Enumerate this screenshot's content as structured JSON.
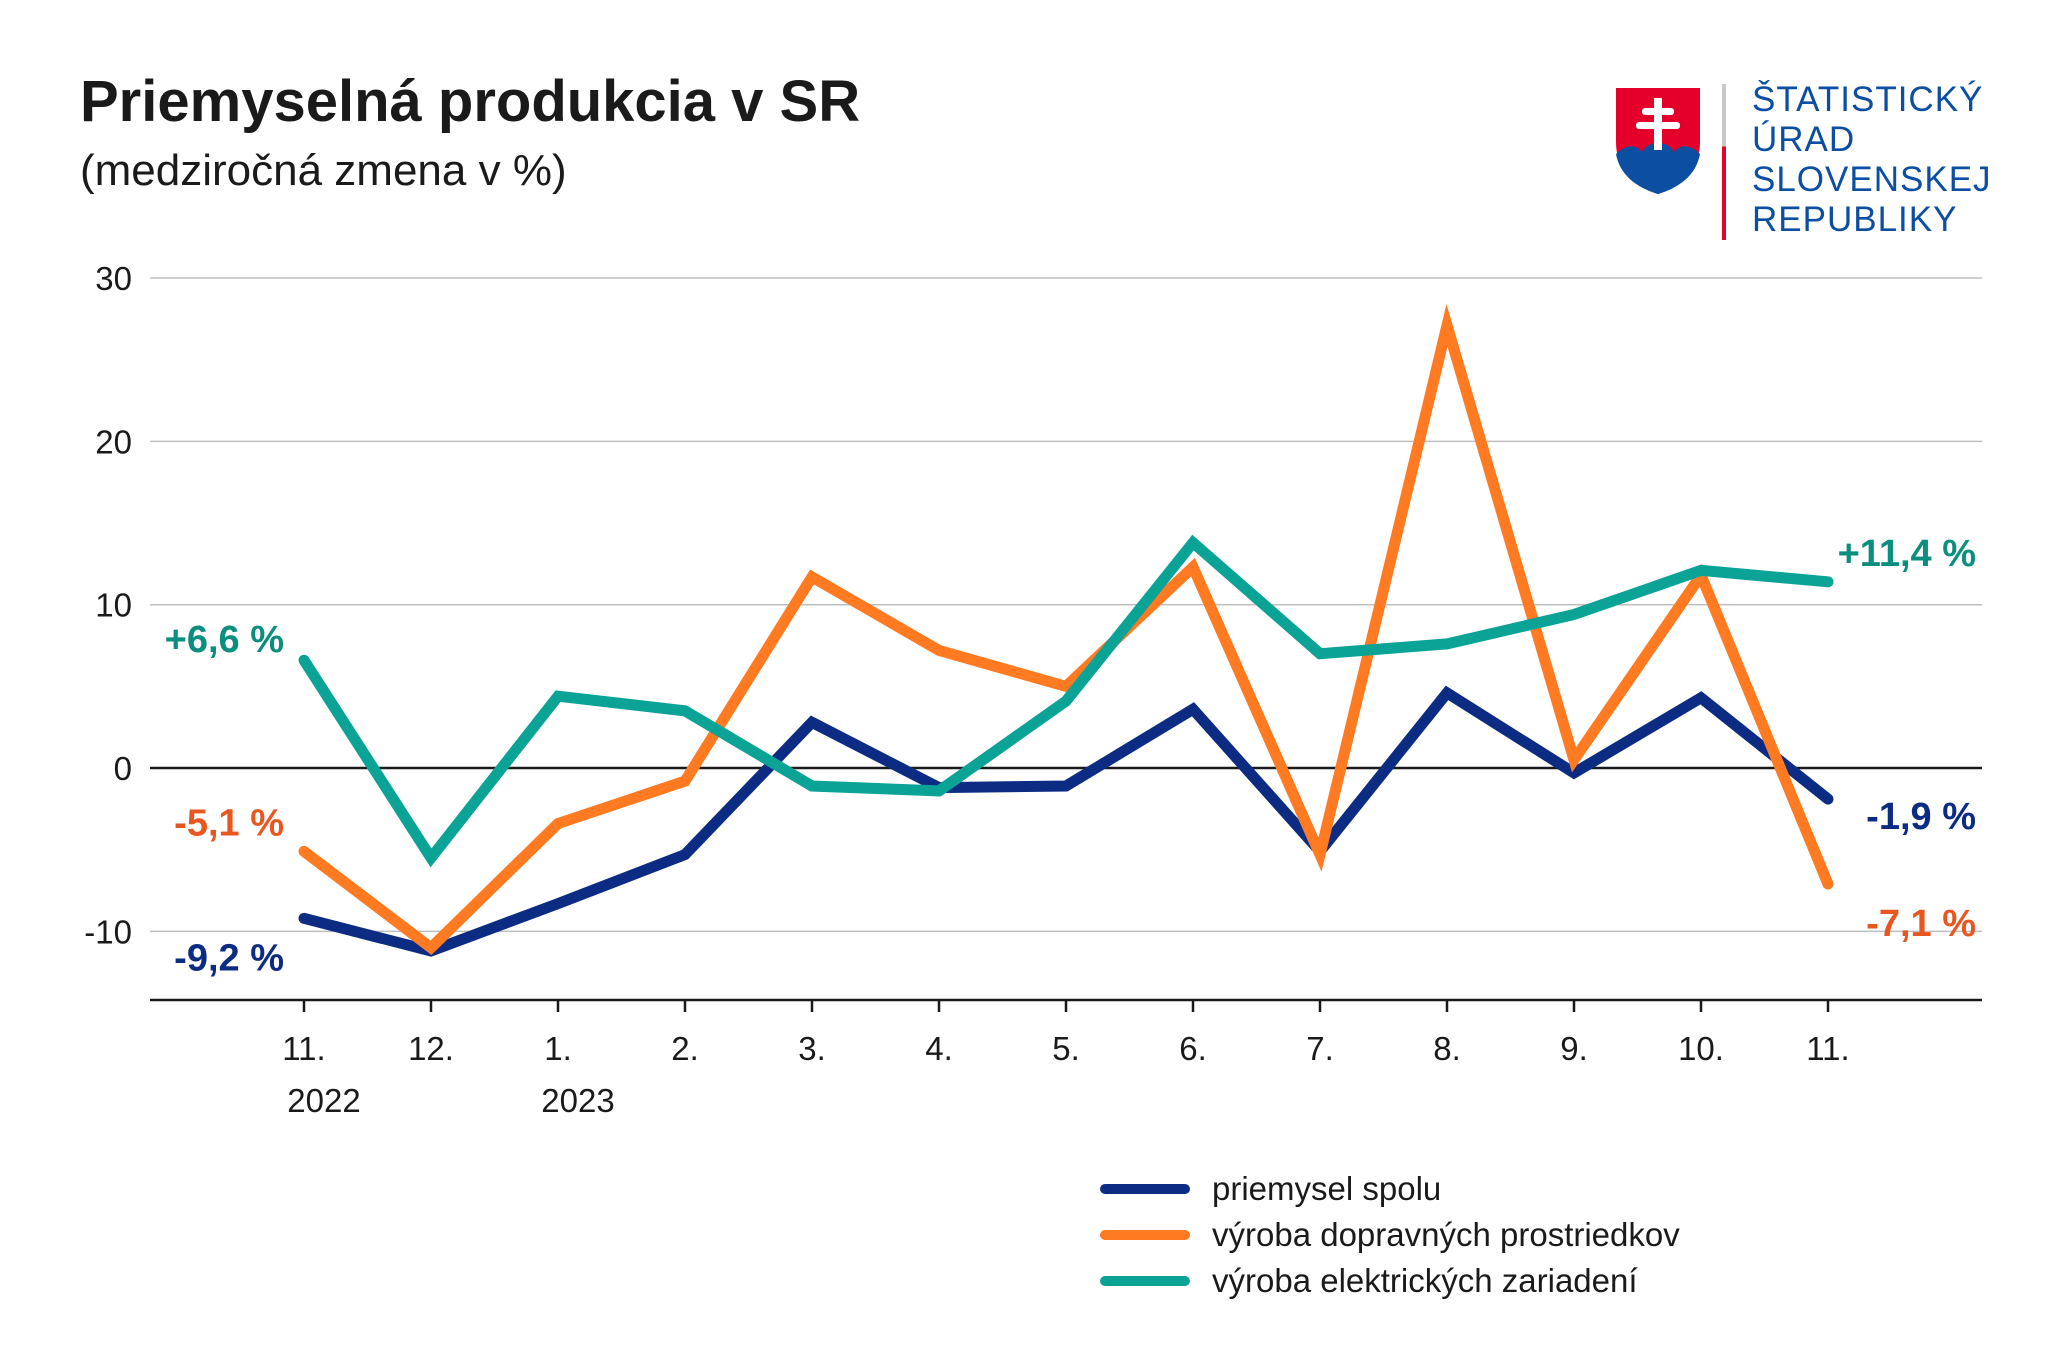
{
  "title": "Priemyselná produkcia v SR",
  "subtitle": "(medziročná zmena v %)",
  "logo": {
    "lines": [
      "ŠTATISTICKÝ",
      "ÚRAD",
      "SLOVENSKEJ",
      "REPUBLIKY"
    ],
    "crest_icon": "slovak-coat-of-arms-icon"
  },
  "colors": {
    "total": "#0c2c84",
    "transport": "#ff7a21",
    "electrical": "#0aa396",
    "label_total": "#0c2c84",
    "label_transport": "#e8571f",
    "label_electrical": "#0a8f7f",
    "grid": "#bfbfbf",
    "axis": "#1a1a1a"
  },
  "chart_data": {
    "type": "line",
    "title": "Priemyselná produkcia v SR",
    "subtitle": "(medziročná zmena v %)",
    "categories": [
      "11.",
      "12.",
      "1.",
      "2.",
      "3.",
      "4.",
      "5.",
      "6.",
      "7.",
      "8.",
      "9.",
      "10.",
      "11."
    ],
    "year_labels": [
      {
        "category_index": 0,
        "label": "2022"
      },
      {
        "category_index": 2,
        "label": "2023"
      }
    ],
    "yticks": [
      -10,
      0,
      10,
      20,
      30
    ],
    "ylim": [
      -14.2,
      30
    ],
    "xlabel": "",
    "ylabel": "",
    "series": [
      {
        "name": "priemysel spolu",
        "key": "total",
        "values": [
          -9.2,
          -11.2,
          -8.3,
          -5.3,
          2.8,
          -1.2,
          -1.1,
          3.6,
          -5.1,
          4.6,
          -0.3,
          4.3,
          -1.9
        ],
        "start_label": "-9,2 %",
        "end_label": "-1,9 %"
      },
      {
        "name": "výroba dopravných prostriedkov",
        "key": "transport",
        "values": [
          -5.1,
          -11.0,
          -3.4,
          -0.8,
          11.7,
          7.2,
          5.0,
          12.3,
          -5.3,
          27.1,
          0.5,
          11.8,
          -7.1
        ],
        "start_label": "-5,1 %",
        "end_label": "-7,1 %"
      },
      {
        "name": "výroba elektrických zariadení",
        "key": "electrical",
        "values": [
          6.6,
          -5.5,
          4.4,
          3.5,
          -1.1,
          -1.4,
          4.1,
          13.8,
          7.0,
          7.6,
          9.4,
          12.1,
          11.4
        ],
        "start_label": "+6,6 %",
        "end_label": "+11,4 %"
      }
    ],
    "legend_position": "bottom-right"
  }
}
